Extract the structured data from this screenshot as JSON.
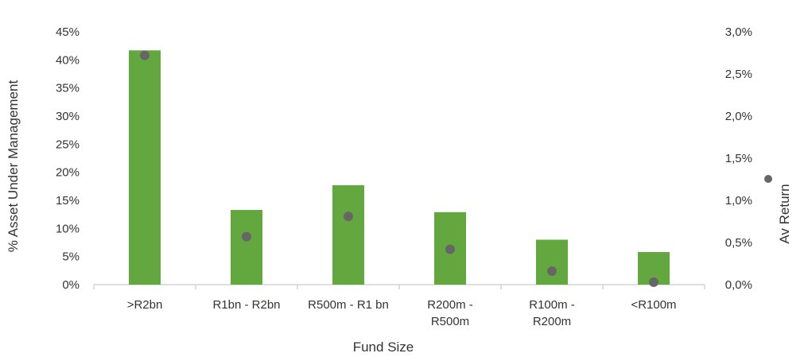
{
  "chart_data": {
    "type": "bar",
    "xlabel": "Fund Size",
    "ylabel": "% Asset Under Management",
    "y2label": "Av Return",
    "categories": [
      ">R2bn",
      "R1bn - R2bn",
      "R500m - R1 bn",
      "R200m - R500m",
      "R100m - R200m",
      "<R100m"
    ],
    "category_lines": [
      [
        ">R2bn"
      ],
      [
        "R1bn - R2bn"
      ],
      [
        "R500m - R1 bn"
      ],
      [
        "R200m -",
        "R500m"
      ],
      [
        "R100m -",
        "R200m"
      ],
      [
        "<R100m"
      ]
    ],
    "ylim": [
      0,
      45
    ],
    "y_ticks": [
      0,
      5,
      10,
      15,
      20,
      25,
      30,
      35,
      40,
      45
    ],
    "y_tick_labels": [
      "0%",
      "5%",
      "10%",
      "15%",
      "20%",
      "25%",
      "30%",
      "35%",
      "40%",
      "45%"
    ],
    "y2lim": [
      0,
      3.0
    ],
    "y2_ticks": [
      0,
      0.5,
      1.0,
      1.5,
      2.0,
      2.5,
      3.0
    ],
    "y2_tick_labels": [
      "0,0%",
      "0,5%",
      "1,0%",
      "1,5%",
      "2,0%",
      "2,5%",
      "3,0%"
    ],
    "series": [
      {
        "type": "bar",
        "axis": "left",
        "color": "#62a83f",
        "values": [
          41.7,
          13.3,
          17.7,
          12.9,
          8.0,
          5.8
        ]
      },
      {
        "name": "Av Return",
        "type": "scatter",
        "axis": "right",
        "color": "#666666",
        "values": [
          2.72,
          0.57,
          0.81,
          0.42,
          0.16,
          0.03
        ]
      }
    ],
    "legend": "right",
    "grid": false
  }
}
